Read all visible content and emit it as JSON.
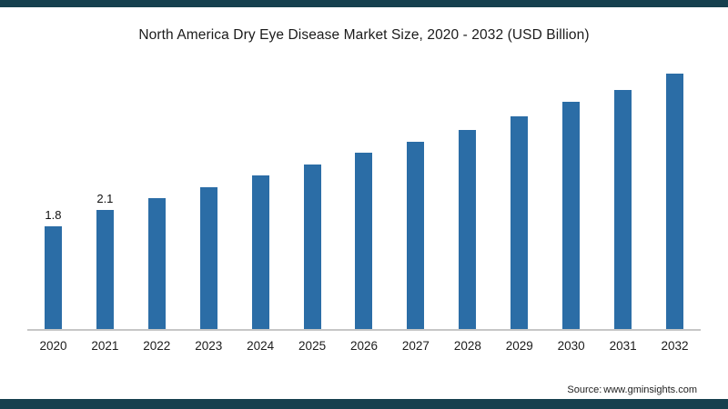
{
  "chart_data": {
    "type": "bar",
    "title": "North America Dry Eye Disease Market Size, 2020 - 2032 (USD Billion)",
    "categories": [
      "2020",
      "2021",
      "2022",
      "2023",
      "2024",
      "2025",
      "2026",
      "2027",
      "2028",
      "2029",
      "2030",
      "2031",
      "2032"
    ],
    "values": [
      1.8,
      2.1,
      2.3,
      2.5,
      2.7,
      2.9,
      3.1,
      3.3,
      3.5,
      3.75,
      4.0,
      4.2,
      4.5
    ],
    "data_labels": [
      "1.8",
      "2.1",
      "",
      "",
      "",
      "",
      "",
      "",
      "",
      "",
      "",
      "",
      ""
    ],
    "xlabel": "",
    "ylabel": "",
    "ylim": [
      0,
      4.8
    ],
    "grid": false,
    "legend": false,
    "bar_color": "#2b6da6"
  },
  "source": {
    "prefix": "Source:",
    "text": "www.gminsights.com"
  },
  "theme": {
    "accent_bar_color": "#16404e",
    "axis_line_color": "#c6c6c6"
  }
}
